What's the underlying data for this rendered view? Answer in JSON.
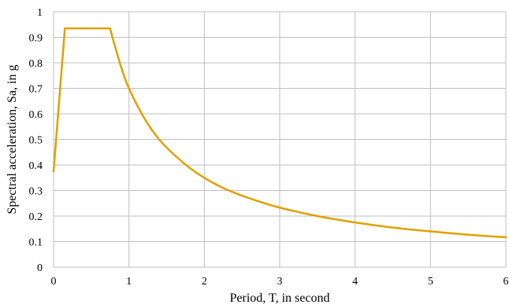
{
  "chart_data": {
    "type": "line",
    "title": "",
    "xlabel": "Period, T, in second",
    "ylabel": "Spectral acceleration, Sa, in g",
    "xlim": [
      0,
      6
    ],
    "ylim": [
      0,
      1
    ],
    "x_ticks": [
      0,
      1,
      2,
      3,
      4,
      5,
      6
    ],
    "y_ticks": [
      0,
      0.1,
      0.2,
      0.3,
      0.4,
      0.5,
      0.6,
      0.7,
      0.8,
      0.9,
      1
    ],
    "x_tick_labels": [
      "0",
      "1",
      "2",
      "3",
      "4",
      "5",
      "6"
    ],
    "y_tick_labels": [
      "0",
      "0.1",
      "0.2",
      "0.3",
      "0.4",
      "0.5",
      "0.6",
      "0.7",
      "0.8",
      "0.9",
      "1"
    ],
    "grid": true,
    "legend": "none",
    "line_color": "#E0A100",
    "grid_color": "#BFBFBF",
    "series": [
      {
        "x": [
          0,
          0.15,
          0.75,
          0.8,
          0.9,
          1.0,
          1.2,
          1.4,
          1.6,
          1.8,
          2.0,
          2.25,
          2.5,
          2.75,
          3.0,
          3.5,
          4.0,
          4.5,
          5.0,
          5.5,
          6.0
        ],
        "y": [
          0.375,
          0.935,
          0.935,
          0.88,
          0.78,
          0.7,
          0.585,
          0.5,
          0.44,
          0.39,
          0.35,
          0.31,
          0.28,
          0.255,
          0.233,
          0.2,
          0.175,
          0.155,
          0.14,
          0.127,
          0.117
        ]
      }
    ]
  }
}
